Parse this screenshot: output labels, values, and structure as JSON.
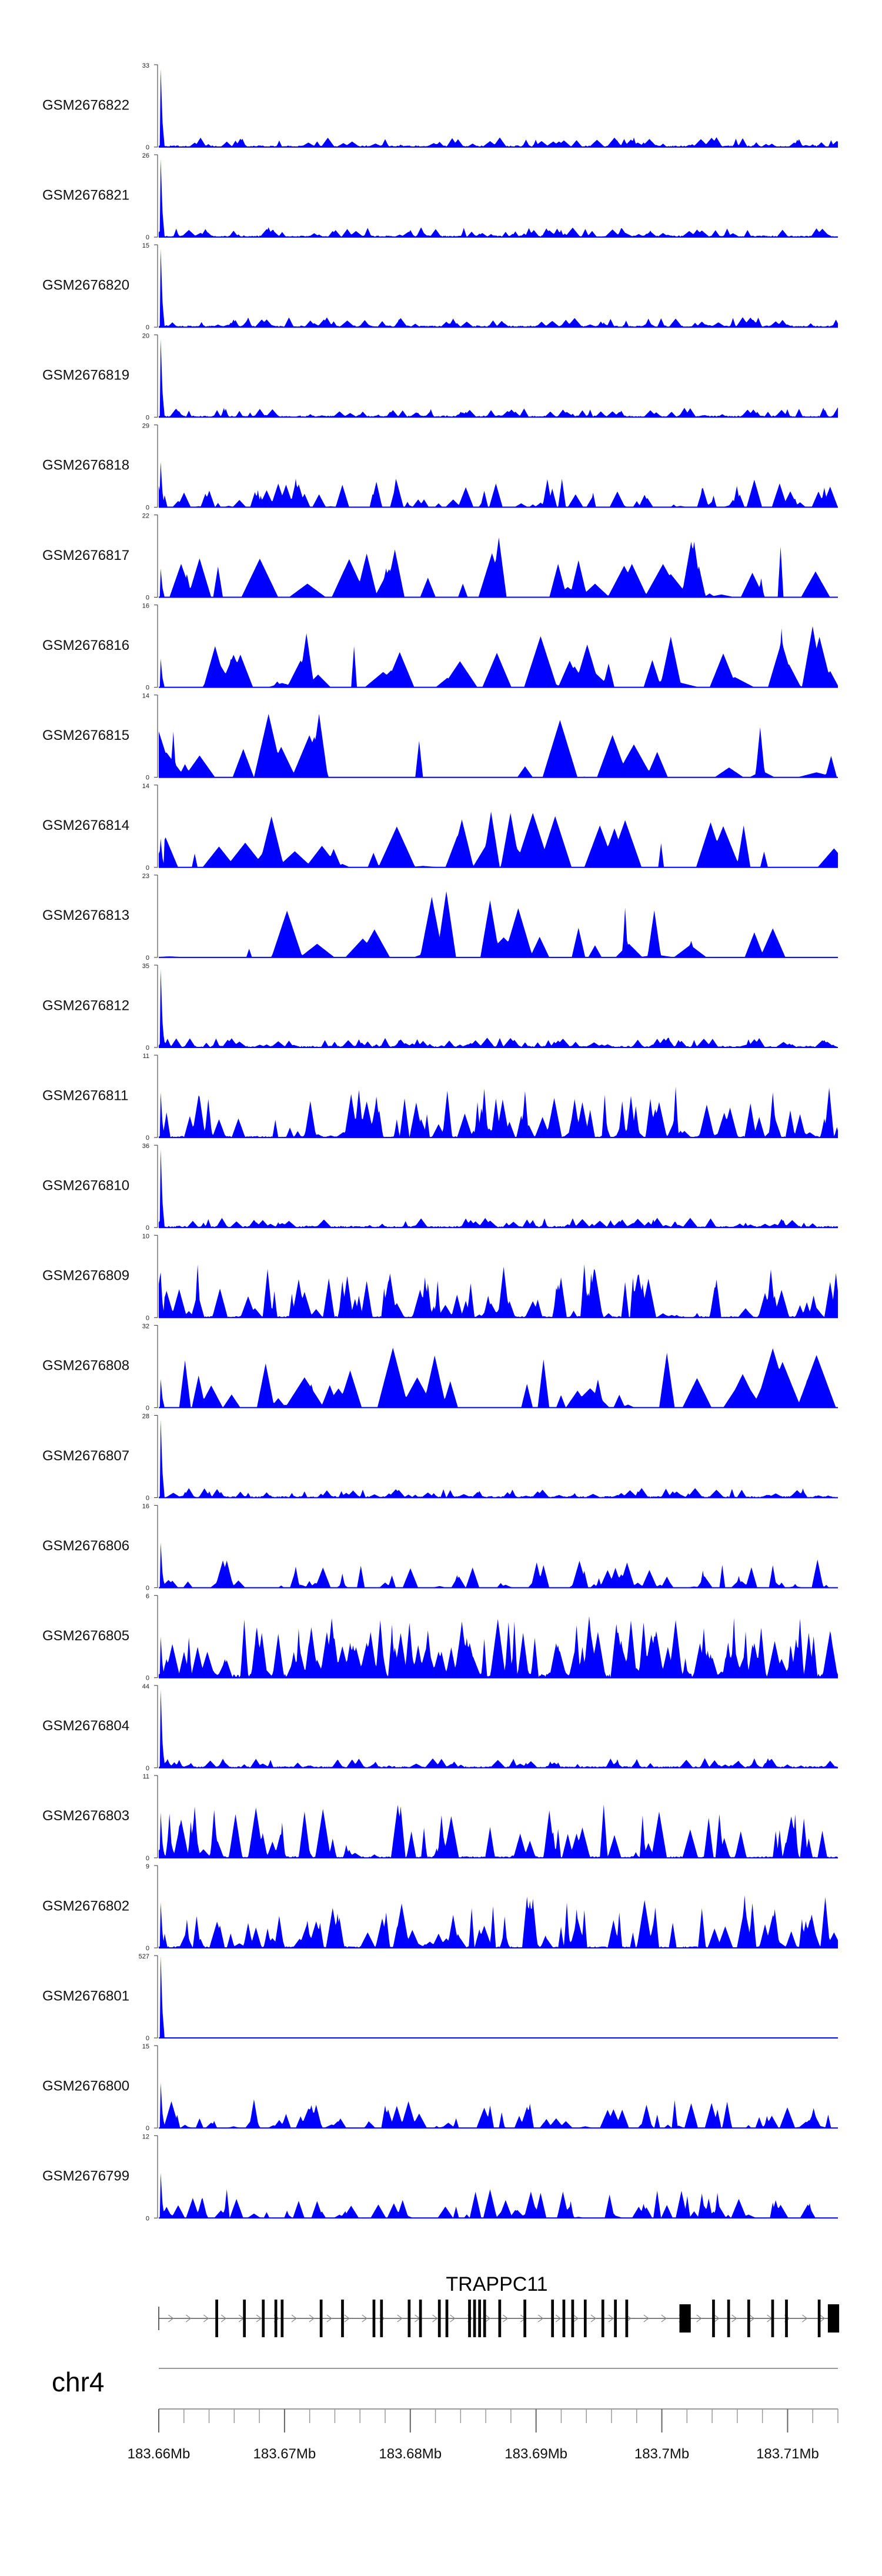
{
  "chart_data": {
    "type": "area",
    "title": "",
    "xlabel": "",
    "ylabel": "",
    "chrom": "chr4",
    "x_range": [
      183.66,
      183.714
    ],
    "ticks": [
      {
        "value": 183.66,
        "label": "183.66Mb"
      },
      {
        "value": 183.67,
        "label": "183.67Mb"
      },
      {
        "value": 183.68,
        "label": "183.68Mb"
      },
      {
        "value": 183.69,
        "label": "183.69Mb"
      },
      {
        "value": 183.7,
        "label": "183.7Mb"
      },
      {
        "value": 183.71,
        "label": "183.71Mb"
      }
    ],
    "minor_tick_step": 0.002,
    "gene": {
      "name": "TRAPPC11",
      "strand": "+",
      "start": 183.66,
      "end": 183.714,
      "exons": [
        {
          "pos": 183.6645,
          "w": 0.00022
        },
        {
          "pos": 183.6667,
          "w": 0.00022
        },
        {
          "pos": 183.6682,
          "w": 0.00022
        },
        {
          "pos": 183.6692,
          "w": 0.00022
        },
        {
          "pos": 183.6697,
          "w": 0.00022
        },
        {
          "pos": 183.6728,
          "w": 0.00022
        },
        {
          "pos": 183.6745,
          "w": 0.00022
        },
        {
          "pos": 183.677,
          "w": 0.00022
        },
        {
          "pos": 183.6776,
          "w": 0.00022
        },
        {
          "pos": 183.6798,
          "w": 0.00022
        },
        {
          "pos": 183.6807,
          "w": 0.00022
        },
        {
          "pos": 183.6822,
          "w": 0.00022
        },
        {
          "pos": 183.6828,
          "w": 0.00022
        },
        {
          "pos": 183.6846,
          "w": 0.00022
        },
        {
          "pos": 183.685,
          "w": 0.00022
        },
        {
          "pos": 183.6854,
          "w": 0.00022
        },
        {
          "pos": 183.6858,
          "w": 0.00022
        },
        {
          "pos": 183.687,
          "w": 0.00022
        },
        {
          "pos": 183.689,
          "w": 0.00022
        },
        {
          "pos": 183.6912,
          "w": 0.00022
        },
        {
          "pos": 183.6921,
          "w": 0.00022
        },
        {
          "pos": 183.6928,
          "w": 0.00022
        },
        {
          "pos": 183.6938,
          "w": 0.00022
        },
        {
          "pos": 183.6952,
          "w": 0.00022
        },
        {
          "pos": 183.6962,
          "w": 0.00022
        },
        {
          "pos": 183.6971,
          "w": 0.00022
        },
        {
          "pos": 183.7014,
          "w": 0.0009
        },
        {
          "pos": 183.704,
          "w": 0.00022
        },
        {
          "pos": 183.7052,
          "w": 0.00022
        },
        {
          "pos": 183.7068,
          "w": 0.00022
        },
        {
          "pos": 183.7087,
          "w": 0.00022
        },
        {
          "pos": 183.7098,
          "w": 0.00022
        },
        {
          "pos": 183.7124,
          "w": 0.00022
        },
        {
          "pos": 183.7132,
          "w": 0.0009
        }
      ]
    },
    "series": [
      {
        "name": "GSM2676822",
        "ymax": 33,
        "ymin": 0,
        "seed": 22,
        "profile": "spike"
      },
      {
        "name": "GSM2676821",
        "ymax": 26,
        "ymin": 0,
        "seed": 21,
        "profile": "spike"
      },
      {
        "name": "GSM2676820",
        "ymax": 15,
        "ymin": 0,
        "seed": 20,
        "profile": "spike"
      },
      {
        "name": "GSM2676819",
        "ymax": 20,
        "ymin": 0,
        "seed": 19,
        "profile": "spike"
      },
      {
        "name": "GSM2676818",
        "ymax": 29,
        "ymin": 0,
        "seed": 18,
        "profile": "peaks"
      },
      {
        "name": "GSM2676817",
        "ymax": 22,
        "ymin": 0,
        "seed": 17,
        "profile": "sparse"
      },
      {
        "name": "GSM2676816",
        "ymax": 16,
        "ymin": 0,
        "seed": 16,
        "profile": "sparse"
      },
      {
        "name": "GSM2676815",
        "ymax": 14,
        "ymin": 0,
        "seed": 15,
        "profile": "verysparse"
      },
      {
        "name": "GSM2676814",
        "ymax": 14,
        "ymin": 0,
        "seed": 14,
        "profile": "sparse"
      },
      {
        "name": "GSM2676813",
        "ymax": 23,
        "ymin": 0,
        "seed": 13,
        "profile": "verysparse"
      },
      {
        "name": "GSM2676812",
        "ymax": 35,
        "ymin": 0,
        "seed": 12,
        "profile": "spike"
      },
      {
        "name": "GSM2676811",
        "ymax": 11,
        "ymin": 0,
        "seed": 11,
        "profile": "medium"
      },
      {
        "name": "GSM2676810",
        "ymax": 36,
        "ymin": 0,
        "seed": 10,
        "profile": "spike"
      },
      {
        "name": "GSM2676809",
        "ymax": 10,
        "ymin": 0,
        "seed": 9,
        "profile": "medium"
      },
      {
        "name": "GSM2676808",
        "ymax": 32,
        "ymin": 0,
        "seed": 8,
        "profile": "sparse"
      },
      {
        "name": "GSM2676807",
        "ymax": 28,
        "ymin": 0,
        "seed": 7,
        "profile": "spike"
      },
      {
        "name": "GSM2676806",
        "ymax": 16,
        "ymin": 0,
        "seed": 6,
        "profile": "peaks"
      },
      {
        "name": "GSM2676805",
        "ymax": 6,
        "ymin": 0,
        "seed": 5,
        "profile": "dense"
      },
      {
        "name": "GSM2676804",
        "ymax": 44,
        "ymin": 0,
        "seed": 4,
        "profile": "spike"
      },
      {
        "name": "GSM2676803",
        "ymax": 11,
        "ymin": 0,
        "seed": 3,
        "profile": "medium"
      },
      {
        "name": "GSM2676802",
        "ymax": 9,
        "ymin": 0,
        "seed": 2,
        "profile": "medium"
      },
      {
        "name": "GSM2676801",
        "ymax": 527,
        "ymin": 0,
        "seed": 1,
        "profile": "flat"
      },
      {
        "name": "GSM2676800",
        "ymax": 15,
        "ymin": 0,
        "seed": 0,
        "profile": "peaks"
      },
      {
        "name": "GSM2676799",
        "ymax": 12,
        "ymin": 0,
        "seed": 99,
        "profile": "peaks"
      }
    ],
    "colors": {
      "signal": "#0000ff",
      "gene": "#000000",
      "axis": "#999999"
    }
  }
}
